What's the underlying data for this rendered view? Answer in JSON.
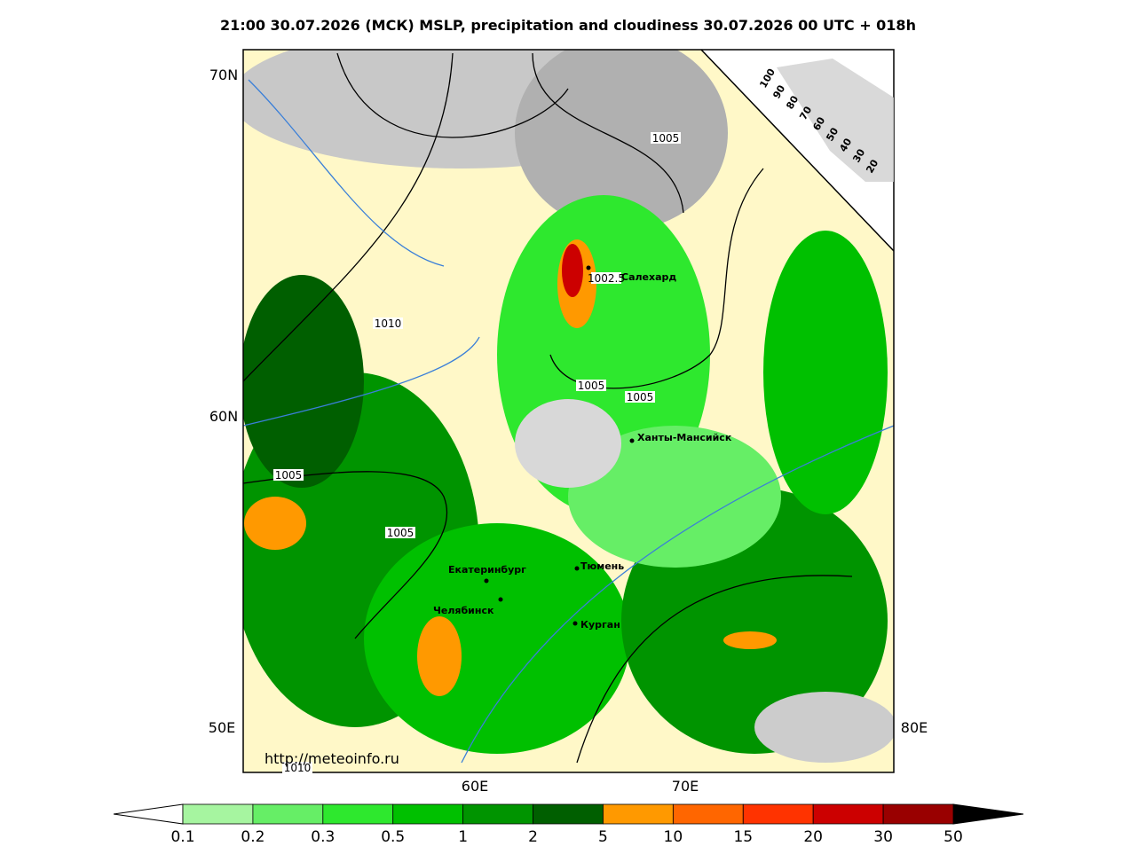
{
  "title": "21:00 30.07.2026 (МСК) MSLP, precipitation and cloudiness 30.07.2026 00 UTC + 018h",
  "axes": {
    "lat_labels": [
      "70N",
      "60N",
      "50E"
    ],
    "lon_labels": [
      "60E",
      "70E",
      "80E"
    ]
  },
  "isobar_labels": [
    "1005",
    "1010",
    "1005",
    "1005",
    "1005",
    "1005",
    "1010",
    "1002.5"
  ],
  "cities": [
    "Салехард",
    "Ханты-Мансийск",
    "Екатеринбург",
    "Тюмень",
    "Челябинск",
    "Курган"
  ],
  "cloud_scale": [
    "100",
    "90",
    "80",
    "70",
    "60",
    "50",
    "40",
    "30",
    "20"
  ],
  "url": "http://meteoinfo.ru",
  "legend": {
    "labels": [
      "0.1",
      "0.2",
      "0.3",
      "0.5",
      "1",
      "2",
      "5",
      "10",
      "15",
      "20",
      "30",
      "50"
    ],
    "colors": [
      "#a6f5a0",
      "#66ee66",
      "#2ee82e",
      "#00c000",
      "#009400",
      "#005f00",
      "#ff9900",
      "#ff6600",
      "#ff3300",
      "#cc0000",
      "#990000"
    ]
  }
}
